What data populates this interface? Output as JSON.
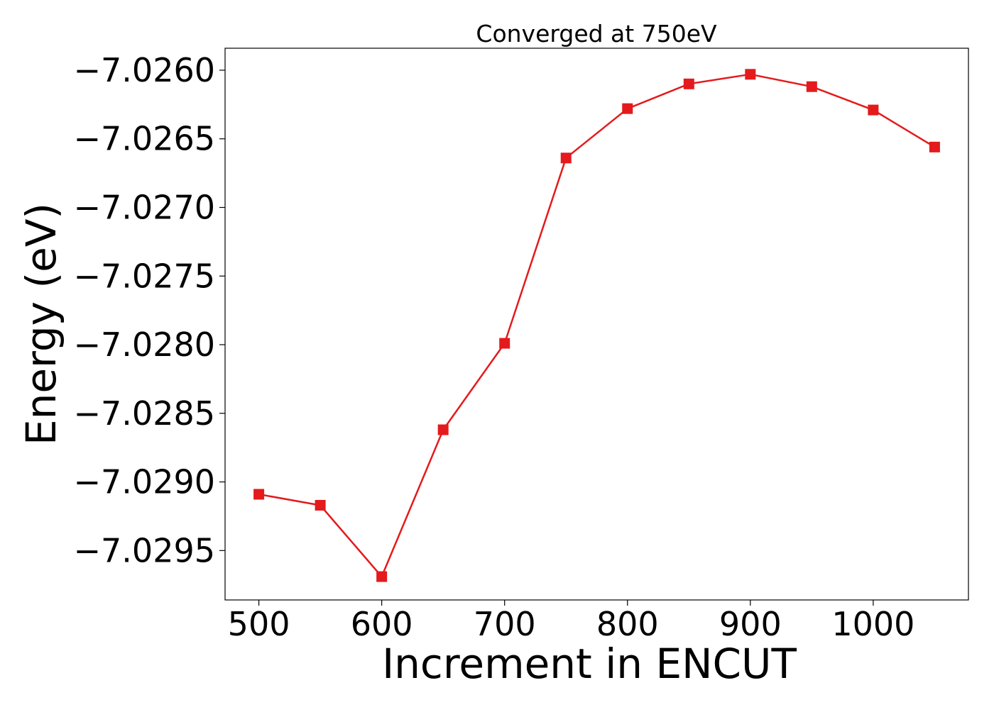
{
  "chart_data": {
    "type": "line",
    "title": "Converged at 750eV",
    "xlabel": "Increment in ENCUT",
    "ylabel": "Energy (eV)",
    "x": [
      500,
      550,
      600,
      650,
      700,
      750,
      800,
      850,
      900,
      950,
      1000,
      1050
    ],
    "series": [
      {
        "values": [
          -7.02909,
          -7.02917,
          -7.02969,
          -7.02862,
          -7.02799,
          -7.02664,
          -7.02628,
          -7.0261,
          -7.02603,
          -7.02612,
          -7.02629,
          -7.02656
        ],
        "color": "#e41a1c",
        "marker": "square"
      }
    ],
    "xlim": [
      472.5,
      1077.5
    ],
    "ylim": [
      -7.02986,
      -7.02584
    ],
    "xticks": [
      500,
      600,
      700,
      800,
      900,
      1000
    ],
    "xtick_labels": [
      "500",
      "600",
      "700",
      "800",
      "900",
      "1000"
    ],
    "yticks": [
      -7.026,
      -7.0265,
      -7.027,
      -7.0275,
      -7.028,
      -7.0285,
      -7.029,
      -7.0295
    ],
    "ytick_labels": [
      "−7.0260",
      "−7.0265",
      "−7.0270",
      "−7.0275",
      "−7.0280",
      "−7.0285",
      "−7.0290",
      "−7.0295"
    ],
    "grid": false,
    "legend": false
  }
}
